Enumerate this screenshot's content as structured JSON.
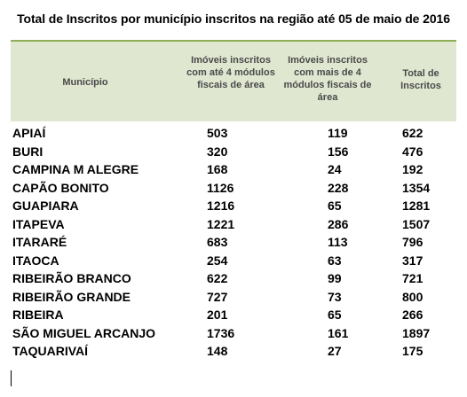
{
  "title": "Total de Inscritos por município inscritos na região até 05 de maio de 2016",
  "headers": {
    "municipio": "Município",
    "col1": "Imóveis inscritos com até 4 módulos fiscais de área",
    "col2": "Imóveis inscritos com mais de 4 módulos fiscais de área",
    "col3": "Total de Inscritos"
  },
  "colors": {
    "header_bg": "#dfe7d0",
    "header_rule": "#8fad55"
  },
  "rows": [
    {
      "municipio": "APIAÍ",
      "ate4": "503",
      "mais4": "119",
      "total": "622"
    },
    {
      "municipio": "BURI",
      "ate4": "320",
      "mais4": "156",
      "total": "476"
    },
    {
      "municipio": "CAMPINA M ALEGRE",
      "ate4": "168",
      "mais4": "24",
      "total": "192"
    },
    {
      "municipio": "CAPÃO BONITO",
      "ate4": "1126",
      "mais4": "228",
      "total": "1354"
    },
    {
      "municipio": "GUAPIARA",
      "ate4": "1216",
      "mais4": "65",
      "total": "1281"
    },
    {
      "municipio": "ITAPEVA",
      "ate4": "1221",
      "mais4": "286",
      "total": "1507"
    },
    {
      "municipio": "ITARARÉ",
      "ate4": "683",
      "mais4": "113",
      "total": "796"
    },
    {
      "municipio": "ITAOCA",
      "ate4": "254",
      "mais4": "63",
      "total": "317"
    },
    {
      "municipio": "RIBEIRÃO BRANCO",
      "ate4": "622",
      "mais4": "99",
      "total": "721"
    },
    {
      "municipio": "RIBEIRÃO GRANDE",
      "ate4": "727",
      "mais4": "73",
      "total": "800"
    },
    {
      "municipio": "RIBEIRA",
      "ate4": "201",
      "mais4": "65",
      "total": "266"
    },
    {
      "municipio": "SÃO MIGUEL ARCANJO",
      "ate4": "1736",
      "mais4": "161",
      "total": "1897"
    },
    {
      "municipio": "TAQUARIVAÍ",
      "ate4": "148",
      "mais4": "27",
      "total": "175"
    }
  ]
}
